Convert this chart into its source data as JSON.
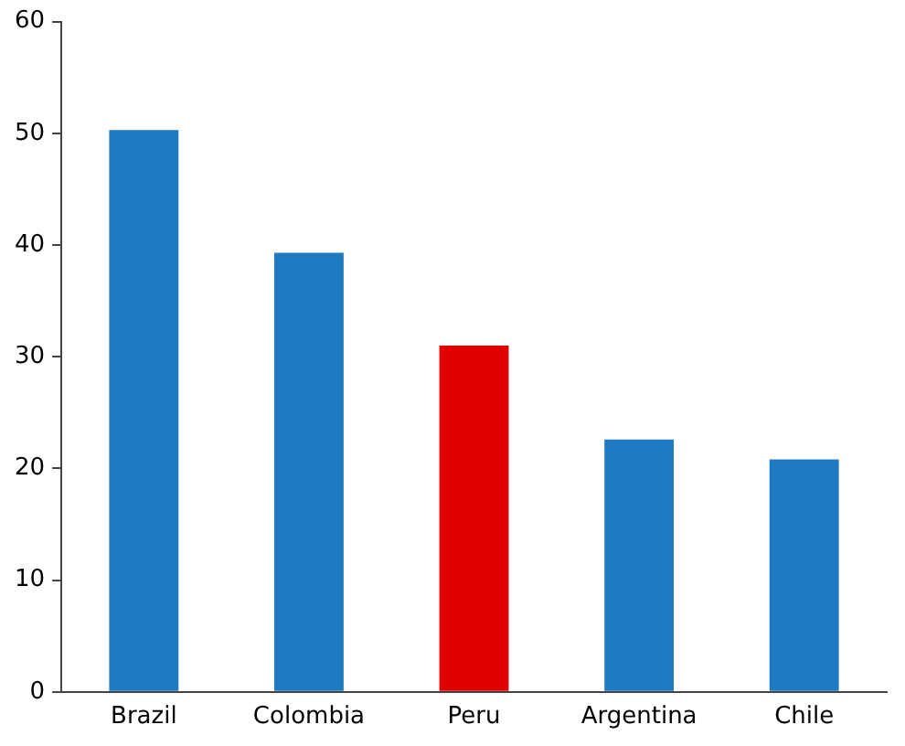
{
  "chart_data": {
    "type": "bar",
    "categories": [
      "Brazil",
      "Colombia",
      "Peru",
      "Argentina",
      "Chile"
    ],
    "values": [
      50.3,
      39.3,
      31.0,
      22.6,
      20.8
    ],
    "colors": [
      "#1f7bc1",
      "#1f7bc1",
      "#e00000",
      "#1f7bc1",
      "#1f7bc1"
    ],
    "ylim": [
      0,
      60
    ],
    "yticks": [
      0,
      10,
      20,
      30,
      40,
      50,
      60
    ],
    "grid": false,
    "legend": false
  }
}
